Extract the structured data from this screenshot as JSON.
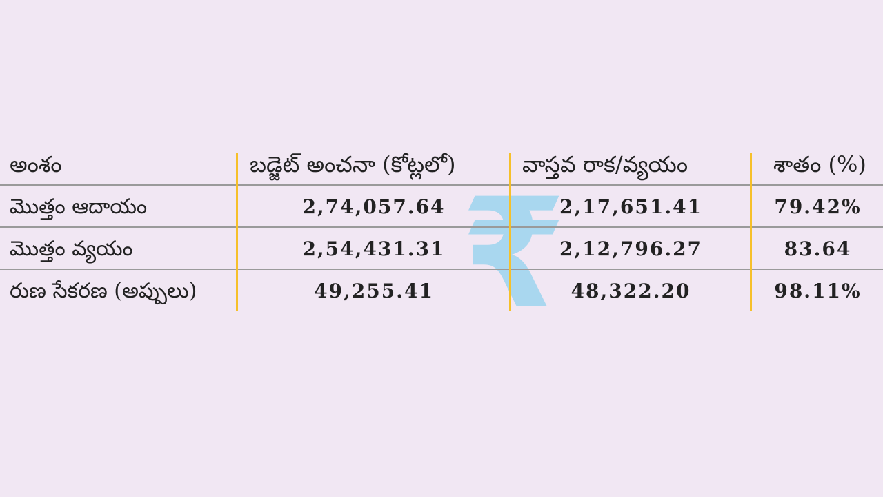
{
  "table": {
    "headers": [
      "అంశం",
      "బడ్జెట్ అంచనా (కోట్లలో)",
      "వాస్తవ రాక/వ్యయం",
      "శాతం (%)"
    ],
    "rows": [
      [
        "మొత్తం ఆదాయం",
        "2,74,057.64",
        "2,17,651.41",
        "79.42%"
      ],
      [
        "మొత్తం వ్యయం",
        "2,54,431.31",
        "2,12,796.27",
        "83.64"
      ],
      [
        "రుణ సేకరణ (అప్పులు)",
        "49,255.41",
        "48,322.20",
        "98.11%"
      ]
    ]
  },
  "decoration": {
    "icon": "rupee-icon",
    "glyph": "₹",
    "color": "#a9d7ef"
  },
  "colors": {
    "background": "#f1e7f3",
    "divider": "#f6c02a",
    "rule": "#9a9a9a"
  }
}
